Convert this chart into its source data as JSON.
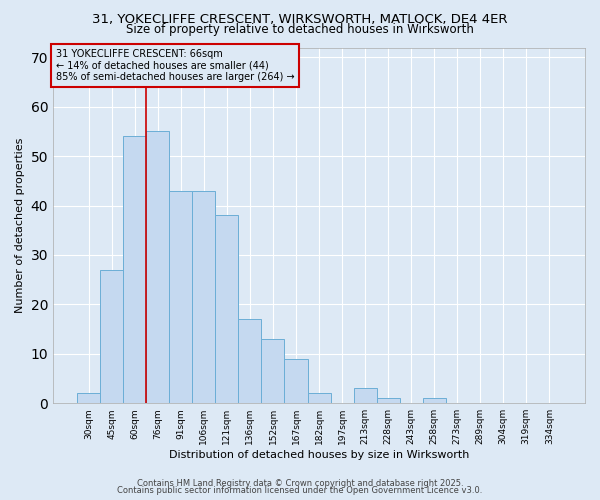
{
  "title_line1": "31, YOKECLIFFE CRESCENT, WIRKSWORTH, MATLOCK, DE4 4ER",
  "title_line2": "Size of property relative to detached houses in Wirksworth",
  "xlabel": "Distribution of detached houses by size in Wirksworth",
  "ylabel": "Number of detached properties",
  "categories": [
    "30sqm",
    "45sqm",
    "60sqm",
    "76sqm",
    "91sqm",
    "106sqm",
    "121sqm",
    "136sqm",
    "152sqm",
    "167sqm",
    "182sqm",
    "197sqm",
    "213sqm",
    "228sqm",
    "243sqm",
    "258sqm",
    "273sqm",
    "289sqm",
    "304sqm",
    "319sqm",
    "334sqm"
  ],
  "values": [
    2,
    27,
    54,
    55,
    43,
    43,
    38,
    17,
    13,
    9,
    2,
    0,
    3,
    1,
    0,
    1,
    0,
    0,
    0,
    0,
    0
  ],
  "bar_color": "#C5D9F0",
  "bar_edge_color": "#6BAED6",
  "red_line_x": 2.5,
  "red_line_color": "#CC0000",
  "annotation_text": "31 YOKECLIFFE CRESCENT: 66sqm\n← 14% of detached houses are smaller (44)\n85% of semi-detached houses are larger (264) →",
  "annotation_box_color": "#CC0000",
  "ylim": [
    0,
    72
  ],
  "yticks": [
    0,
    10,
    20,
    30,
    40,
    50,
    60,
    70
  ],
  "background_color": "#DDE9F5",
  "grid_color": "#FFFFFF",
  "footer_line1": "Contains HM Land Registry data © Crown copyright and database right 2025.",
  "footer_line2": "Contains public sector information licensed under the Open Government Licence v3.0."
}
